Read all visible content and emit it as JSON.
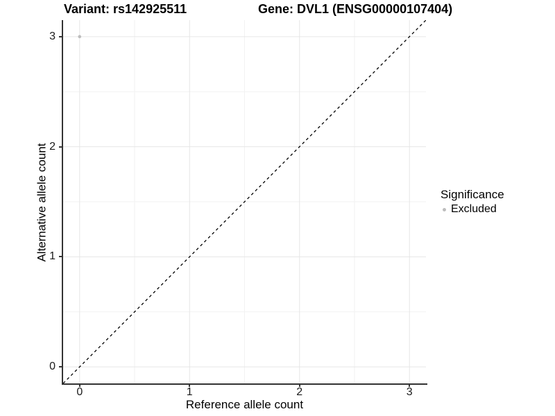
{
  "chart_data": {
    "type": "scatter",
    "title_left": "Variant: rs142925511",
    "title_right": "Gene: DVL1 (ENSG00000107404)",
    "xlabel": "Reference allele count",
    "ylabel": "Alternative allele count",
    "xlim": [
      -0.15,
      3.15
    ],
    "ylim": [
      -0.15,
      3.15
    ],
    "x_ticks": [
      0,
      1,
      2,
      3
    ],
    "y_ticks": [
      0,
      1,
      2,
      3
    ],
    "x_minor_ticks": [
      0.5,
      1.5,
      2.5
    ],
    "y_minor_ticks": [
      0.5,
      1.5,
      2.5
    ],
    "grid": true,
    "points": [
      {
        "x": 0,
        "y": 3,
        "series": "Excluded"
      }
    ],
    "reference_line": {
      "slope": 1,
      "intercept": 0,
      "style": "dashed",
      "color": "#000000"
    },
    "legend": {
      "position": "right",
      "title": "Significance",
      "entries": [
        {
          "label": "Excluded",
          "color": "#bdbdbd",
          "marker": "circle"
        }
      ]
    }
  },
  "colors": {
    "point": "#bdbdbd",
    "grid_major": "#e6e6e6",
    "grid_minor": "#f2f2f2",
    "axis_line": "#333333",
    "background": "#ffffff"
  }
}
